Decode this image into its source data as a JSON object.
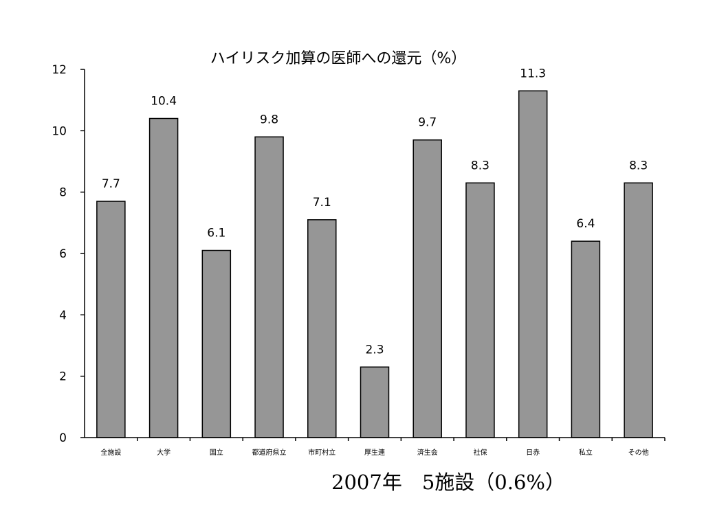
{
  "chart_data": {
    "type": "bar",
    "title": "ハイリスク加算の医師への還元（%）",
    "categories": [
      "全施設",
      "大学",
      "国立",
      "都道府県立",
      "市町村立",
      "厚生連",
      "済生会",
      "社保",
      "日赤",
      "私立",
      "その他"
    ],
    "values": [
      7.7,
      10.4,
      6.1,
      9.8,
      7.1,
      2.3,
      9.7,
      8.3,
      11.3,
      6.4,
      8.3
    ],
    "value_labels": [
      "7.7",
      "10.4",
      "6.1",
      "9.8",
      "7.1",
      "2.3",
      "9.7",
      "8.3",
      "11.3",
      "6.4",
      "8.3"
    ],
    "yticks": [
      "0",
      "2",
      "4",
      "6",
      "8",
      "10",
      "12"
    ],
    "ylim": [
      0,
      12
    ],
    "xlabel": "",
    "ylabel": "",
    "grid": false,
    "bar_color": "#969696",
    "bar_stroke": "#000000"
  },
  "footnote": "2007年　5施設（0.6%）"
}
